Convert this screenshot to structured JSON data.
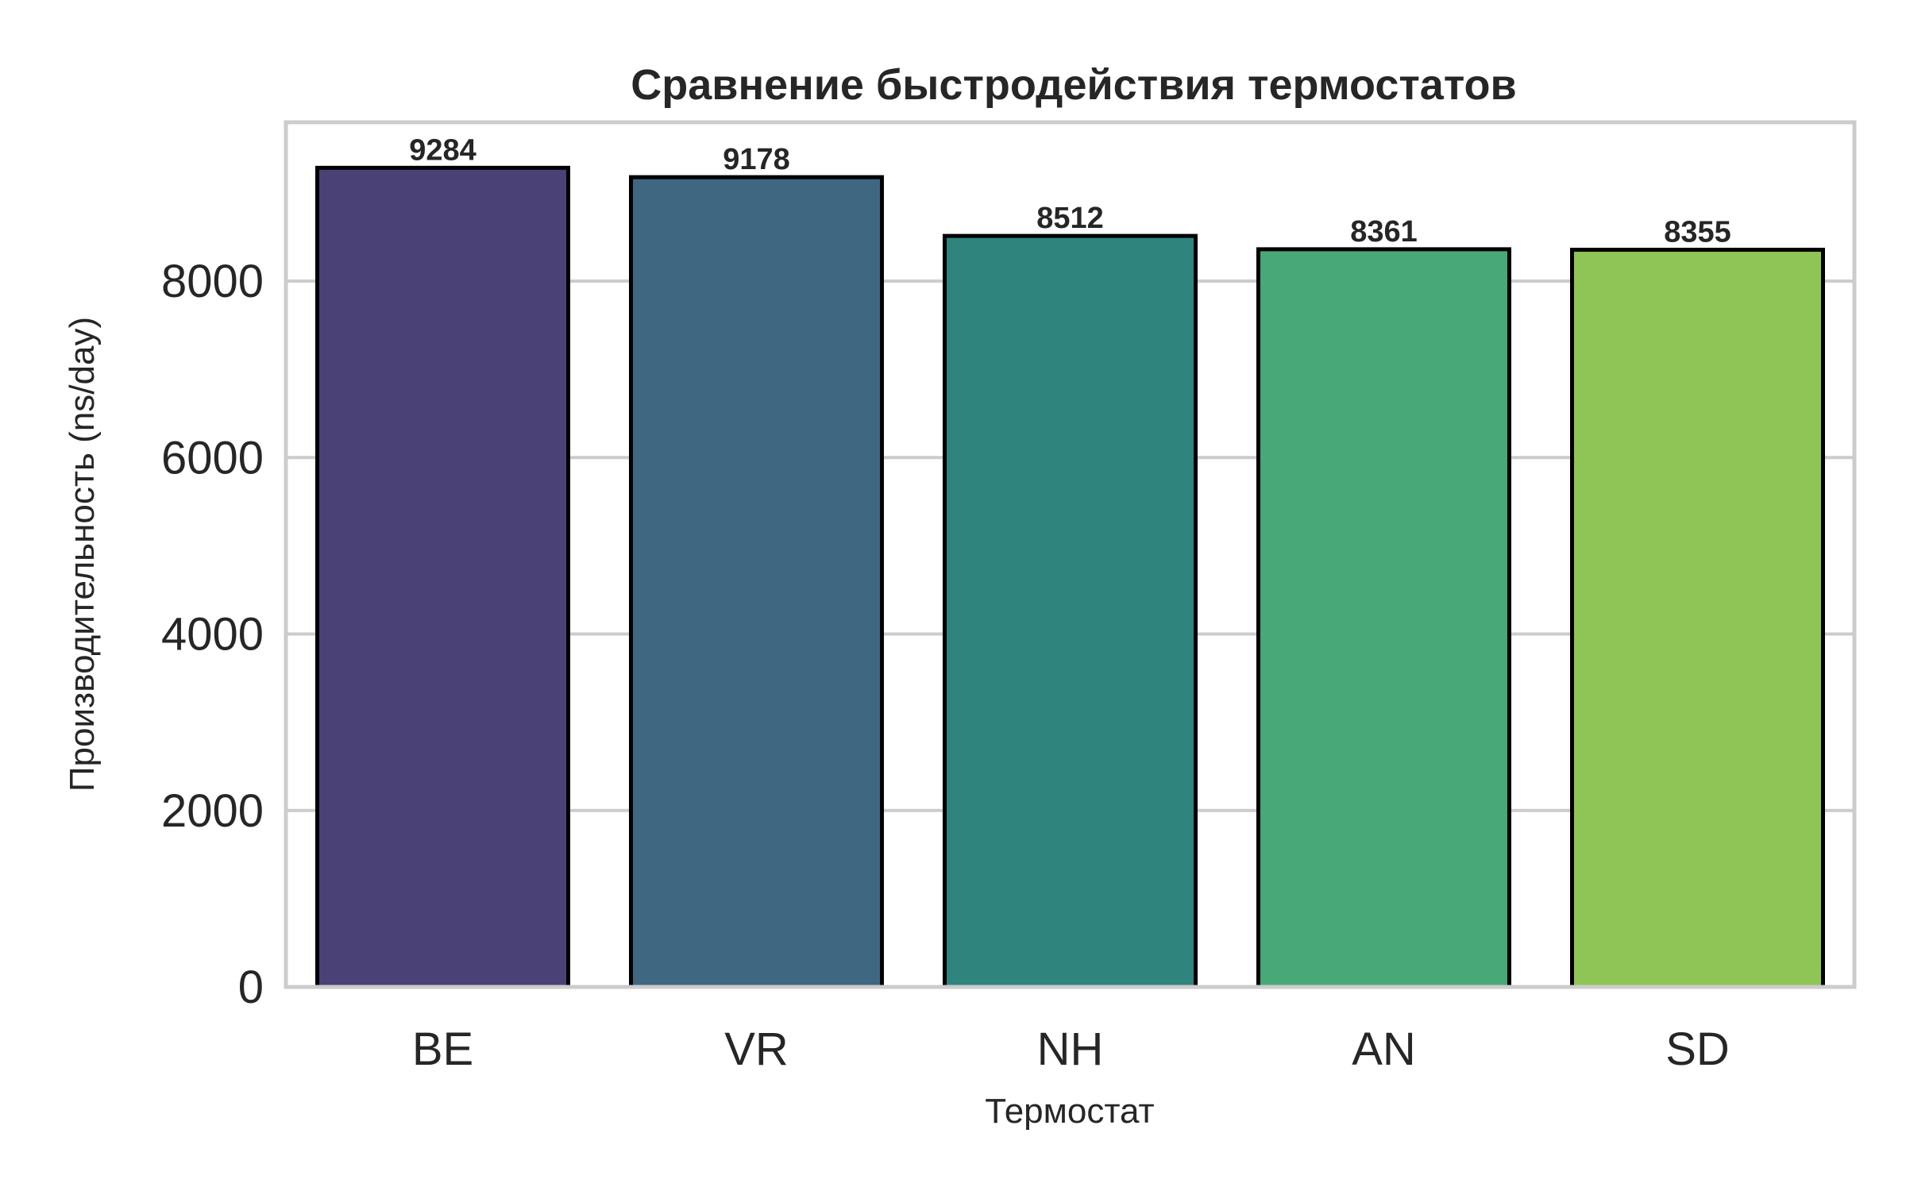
{
  "chart_data": {
    "type": "bar",
    "title": "Сравнение быстродействия термостатов",
    "xlabel": "Термостат",
    "ylabel": "Производительность (ns/day)",
    "categories": [
      "BE",
      "VR",
      "NH",
      "AN",
      "SD"
    ],
    "values": [
      9284,
      9178,
      8512,
      8361,
      8355
    ],
    "data_labels": [
      "9284",
      "9178",
      "8512",
      "8361",
      "8355"
    ],
    "colors": [
      "#4a4277",
      "#3f6782",
      "#2f847e",
      "#48a877",
      "#8fc556"
    ],
    "ylim": [
      0,
      9800
    ],
    "yticks": [
      0,
      2000,
      4000,
      6000,
      8000
    ],
    "ytick_labels": [
      "0",
      "2000",
      "4000",
      "6000",
      "8000"
    ],
    "grid": "horizontal",
    "legend": "none"
  }
}
